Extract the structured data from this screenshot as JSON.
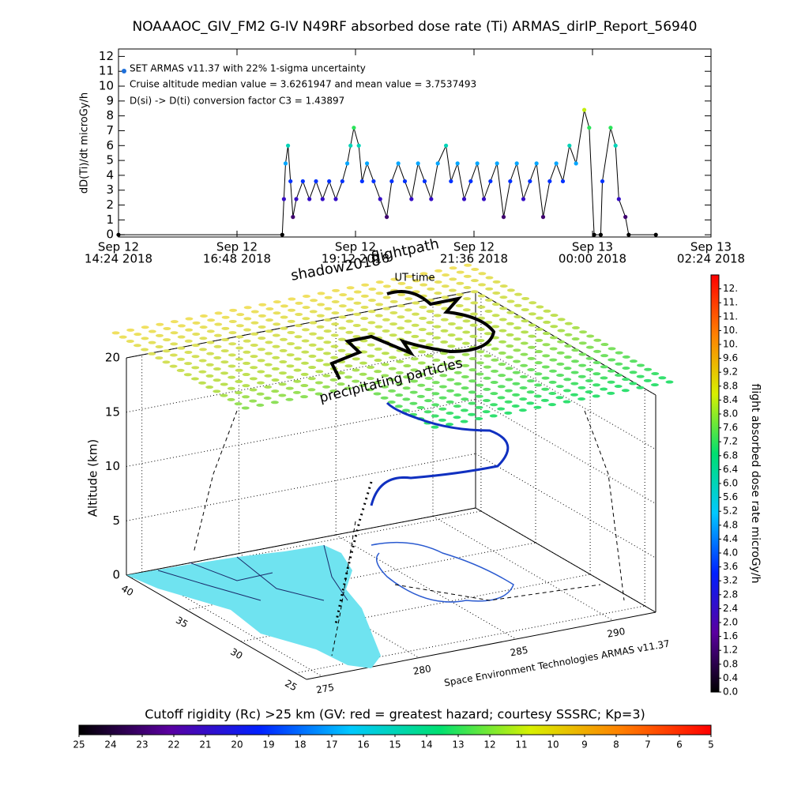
{
  "chart_data": [
    {
      "type": "line",
      "title": "NOAAAOC_GIV_FM2 G-IV   N49RF  absorbed dose rate (Ti) ARMAS_dirIP_Report_56940",
      "ylabel": "dD(Ti)/dt microGy/h",
      "xlabel": "UT time",
      "annotations": [
        "Cruise altitude median value = 3.6261947 and mean value = 3.7537493",
        "D(si) -> D(ti) conversion factor C3 = 1.43897"
      ],
      "xlim": [
        "2018-09-12T14:24",
        "2018-09-13T02:24"
      ],
      "xticks": [
        {
          "value": "2018-09-12T14:24",
          "label": [
            "Sep 12",
            "14:24 2018"
          ]
        },
        {
          "value": "2018-09-12T16:48",
          "label": [
            "Sep 12",
            "16:48 2018"
          ]
        },
        {
          "value": "2018-09-12T19:12",
          "label": [
            "Sep 12",
            "19:12 2018"
          ]
        },
        {
          "value": "2018-09-12T21:36",
          "label": [
            "Sep 12",
            "21:36 2018"
          ]
        },
        {
          "value": "2018-09-13T00:00",
          "label": [
            "Sep 13",
            "00:00 2018"
          ]
        },
        {
          "value": "2018-09-13T02:24",
          "label": [
            "Sep 13",
            "02:24 2018"
          ]
        }
      ],
      "ylim": [
        -0.15,
        12.5
      ],
      "yticks": [
        0,
        1,
        2,
        3,
        4,
        5,
        6,
        7,
        8,
        9,
        10,
        11,
        12
      ],
      "x": [
        "2018-09-12T14:24",
        "2018-09-12T17:43",
        "2018-09-12T17:45",
        "2018-09-12T17:47",
        "2018-09-12T17:50",
        "2018-09-12T17:53",
        "2018-09-12T17:56",
        "2018-09-12T18:00",
        "2018-09-12T18:08",
        "2018-09-12T18:16",
        "2018-09-12T18:24",
        "2018-09-12T18:32",
        "2018-09-12T18:40",
        "2018-09-12T18:48",
        "2018-09-12T18:56",
        "2018-09-12T19:02",
        "2018-09-12T19:06",
        "2018-09-12T19:10",
        "2018-09-12T19:16",
        "2018-09-12T19:20",
        "2018-09-12T19:26",
        "2018-09-12T19:34",
        "2018-09-12T19:42",
        "2018-09-12T19:50",
        "2018-09-12T19:56",
        "2018-09-12T20:04",
        "2018-09-12T20:12",
        "2018-09-12T20:20",
        "2018-09-12T20:28",
        "2018-09-12T20:36",
        "2018-09-12T20:44",
        "2018-09-12T20:52",
        "2018-09-12T21:02",
        "2018-09-12T21:08",
        "2018-09-12T21:16",
        "2018-09-12T21:24",
        "2018-09-12T21:32",
        "2018-09-12T21:40",
        "2018-09-12T21:48",
        "2018-09-12T21:56",
        "2018-09-12T22:04",
        "2018-09-12T22:12",
        "2018-09-12T22:20",
        "2018-09-12T22:28",
        "2018-09-12T22:36",
        "2018-09-12T22:44",
        "2018-09-12T22:52",
        "2018-09-12T23:00",
        "2018-09-12T23:08",
        "2018-09-12T23:16",
        "2018-09-12T23:24",
        "2018-09-12T23:32",
        "2018-09-12T23:40",
        "2018-09-12T23:50",
        "2018-09-12T23:56",
        "2018-09-13T00:02",
        "2018-09-13T00:10",
        "2018-09-13T00:12",
        "2018-09-13T00:22",
        "2018-09-13T00:28",
        "2018-09-13T00:32",
        "2018-09-13T00:40",
        "2018-09-13T00:44",
        "2018-09-13T01:17"
      ],
      "series": [
        {
          "name": "SET ARMAS v11.37 with 22% 1-sigma uncertainty",
          "color": "#000000",
          "marker_color": "#1e6fd9",
          "values": [
            0,
            0,
            2.4,
            4.8,
            6.0,
            3.6,
            1.2,
            2.4,
            3.6,
            2.4,
            3.6,
            2.4,
            3.6,
            2.4,
            3.6,
            4.8,
            6.0,
            7.2,
            6.0,
            3.6,
            4.8,
            3.6,
            2.4,
            1.2,
            3.6,
            4.8,
            3.6,
            2.4,
            4.8,
            3.6,
            2.4,
            4.8,
            6.0,
            3.6,
            4.8,
            2.4,
            3.6,
            4.8,
            2.4,
            3.6,
            4.8,
            1.2,
            3.6,
            4.8,
            2.4,
            3.6,
            4.8,
            1.2,
            3.6,
            4.8,
            3.6,
            6.0,
            4.8,
            8.4,
            7.2,
            0,
            0,
            3.6,
            7.2,
            6.0,
            2.4,
            1.2,
            0,
            0
          ]
        }
      ]
    },
    {
      "type": "map3d",
      "zlabel": "Altitude (km)",
      "zlim": [
        0,
        20
      ],
      "zticks": [
        0,
        5,
        10,
        15,
        20
      ],
      "lat_lim": [
        40.5,
        24
      ],
      "lat_ticks": [
        40,
        35,
        30,
        25
      ],
      "lon_lim": [
        274.2,
        292.2
      ],
      "lon_ticks": [
        275,
        280,
        285,
        290
      ],
      "annotations": [
        "shadow2018",
        "flightpath",
        "precipitating particles",
        "Space Environment Technologies ARMAS v11.37"
      ]
    },
    {
      "type": "colorbar",
      "title": "flight absorbed dose rate microGy/h",
      "ylim": [
        0,
        12
      ],
      "yticks": [
        {
          "value": 0,
          "label": "0.0"
        },
        0.4,
        0.8,
        1.2,
        1.6,
        {
          "value": 2,
          "label": "2.0"
        },
        2.4,
        2.8,
        3.2,
        3.6,
        {
          "value": 4,
          "label": "4.0"
        },
        4.4,
        4.8,
        5.2,
        5.6,
        {
          "value": 6,
          "label": "6.0"
        },
        6.4,
        6.8,
        7.2,
        7.6,
        {
          "value": 8,
          "label": "8.0"
        },
        8.4,
        8.8,
        9.2,
        9.6,
        {
          "value": 10,
          "label": "10."
        },
        {
          "value": 10.4,
          "label": "10."
        },
        {
          "value": 10.8,
          "label": "11."
        },
        {
          "value": 11.2,
          "label": "11."
        },
        {
          "value": 11.6,
          "label": "12."
        }
      ],
      "colorscale": [
        "#000000",
        "#5a00a0",
        "#0020ff",
        "#00c8ff",
        "#00e070",
        "#d8f000",
        "#ff8000",
        "#ff0000"
      ]
    },
    {
      "type": "colorbar",
      "title": "Cutoff rigidity (Rc) >25 km (GV: red = greatest hazard; courtesy SSSRC; Kp=3)",
      "xlim": [
        25,
        5
      ],
      "xticks": [
        25,
        24,
        23,
        22,
        21,
        20,
        19,
        18,
        17,
        16,
        15,
        14,
        13,
        12,
        11,
        10,
        9,
        8,
        7,
        6,
        5
      ],
      "colorscale": [
        "#000000",
        "#5a00a0",
        "#0020ff",
        "#00c8ff",
        "#00e070",
        "#d8f000",
        "#ff8000",
        "#ff0000"
      ]
    }
  ]
}
